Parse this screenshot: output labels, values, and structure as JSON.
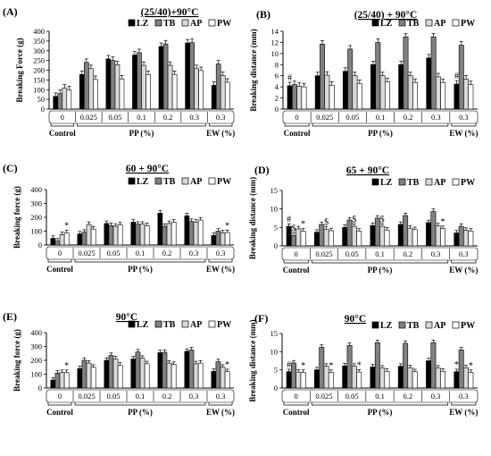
{
  "legend_entries": [
    "LZ",
    "TB",
    "AP",
    "PW"
  ],
  "series_colors": [
    "#000000",
    "#808080",
    "#d9d9d9",
    "#ffffff"
  ],
  "chart_data": [
    {
      "panel": "(A)",
      "type": "bar",
      "title": "(25/40)+90°C",
      "ylabel": "Breaking Force (g)",
      "ylim": [
        0,
        400
      ],
      "yticks": [
        0,
        50,
        100,
        150,
        200,
        250,
        300,
        350,
        400
      ],
      "categories": [
        "0",
        "0.025",
        "0.05",
        "0.1",
        "0.2",
        "0.3",
        "0.3"
      ],
      "group_labels": [
        "Control",
        "PP (%)",
        "EW (%)"
      ],
      "series": [
        {
          "name": "LZ",
          "values": [
            65,
            178,
            258,
            278,
            322,
            340,
            122
          ]
        },
        {
          "name": "TB",
          "values": [
            80,
            240,
            250,
            290,
            335,
            342,
            232
          ]
        },
        {
          "name": "AP",
          "values": [
            108,
            208,
            228,
            225,
            225,
            208,
            172
          ]
        },
        {
          "name": "PW",
          "values": [
            100,
            152,
            155,
            178,
            178,
            198,
            138
          ]
        }
      ],
      "annotations": []
    },
    {
      "panel": "(B)",
      "type": "bar",
      "title": "(25/40) + 90°C",
      "ylabel": "Breaking distance (mm)",
      "ylim": [
        0,
        14
      ],
      "yticks": [
        0,
        2,
        4,
        6,
        8,
        10,
        12,
        14
      ],
      "categories": [
        "0",
        "0.025",
        "0.05",
        "0.1",
        "0.2",
        "0.3",
        "0.3"
      ],
      "group_labels": [
        "Control",
        "PP (%)",
        "EW (%)"
      ],
      "series": [
        {
          "name": "LZ",
          "values": [
            4.2,
            6.0,
            6.8,
            8.0,
            8.0,
            9.2,
            4.5
          ]
        },
        {
          "name": "TB",
          "values": [
            4.4,
            11.7,
            10.8,
            12.0,
            13.0,
            13.0,
            11.5
          ]
        },
        {
          "name": "AP",
          "values": [
            4.1,
            6.1,
            6.0,
            6.0,
            6.0,
            5.8,
            5.4
          ]
        },
        {
          "name": "PW",
          "values": [
            4.0,
            4.3,
            4.6,
            4.9,
            4.8,
            4.8,
            4.4
          ]
        }
      ],
      "annotations": [
        {
          "text": "#",
          "group": 0,
          "bar": 0
        },
        {
          "text": "#",
          "group": 6,
          "bar": 0
        }
      ]
    },
    {
      "panel": "(C)",
      "type": "bar",
      "title": "60 + 90°C",
      "ylabel": "Breaking force (g)",
      "ylim": [
        0,
        400
      ],
      "yticks": [
        0,
        100,
        200,
        300,
        400
      ],
      "categories": [
        "0",
        "0.025",
        "0.05",
        "0.1",
        "0.2",
        "0.3",
        "0.3"
      ],
      "group_labels": [
        "Control",
        "PP (%)",
        "EW (%)"
      ],
      "series": [
        {
          "name": "LZ",
          "values": [
            48,
            80,
            155,
            165,
            230,
            210,
            68
          ]
        },
        {
          "name": "TB",
          "values": [
            28,
            92,
            140,
            150,
            135,
            170,
            100
          ]
        },
        {
          "name": "AP",
          "values": [
            75,
            148,
            135,
            150,
            155,
            165,
            88
          ]
        },
        {
          "name": "PW",
          "values": [
            88,
            115,
            145,
            140,
            165,
            180,
            90
          ]
        }
      ],
      "annotations": [
        {
          "text": "*",
          "group": 0,
          "bar": 3
        },
        {
          "text": "*",
          "group": 6,
          "bar": 3
        }
      ]
    },
    {
      "panel": "(D)",
      "type": "bar",
      "title": "65 + 90°C",
      "ylabel": "Breaking distance (mm)",
      "ylim": [
        0,
        15
      ],
      "yticks": [
        0,
        5,
        10,
        15
      ],
      "categories": [
        "0",
        "0.025",
        "0.05",
        "0.1",
        "0.2",
        "0.3",
        "0.3"
      ],
      "group_labels": [
        "Control",
        "PP (%)",
        "EW (%)"
      ],
      "series": [
        {
          "name": "LZ",
          "values": [
            5.3,
            3.7,
            5.0,
            5.5,
            5.8,
            6.3,
            3.5
          ]
        },
        {
          "name": "TB",
          "values": [
            2.8,
            5.8,
            7.0,
            7.5,
            8.2,
            9.3,
            5.3
          ]
        },
        {
          "name": "AP",
          "values": [
            4.6,
            4.5,
            5.3,
            5.3,
            4.8,
            5.4,
            4.2
          ]
        },
        {
          "name": "PW",
          "values": [
            4.0,
            4.1,
            4.0,
            4.3,
            4.4,
            4.7,
            4.0
          ]
        }
      ],
      "annotations": [
        {
          "text": "#",
          "group": 0,
          "bar": 0
        },
        {
          "text": "$",
          "group": 0,
          "bar": 1
        },
        {
          "text": "*",
          "group": 0,
          "bar": 3
        },
        {
          "text": "$",
          "group": 1,
          "bar": 2
        },
        {
          "text": "$",
          "group": 2,
          "bar": 2
        },
        {
          "text": "$",
          "group": 3,
          "bar": 2
        },
        {
          "text": "*",
          "group": 5,
          "bar": 3
        }
      ]
    },
    {
      "panel": "(E)",
      "type": "bar",
      "title": "90°C",
      "ylabel": "Breaking force (g)",
      "ylim": [
        0,
        400
      ],
      "yticks": [
        0,
        100,
        200,
        300,
        400
      ],
      "categories": [
        "0",
        "0.025",
        "0.05",
        "0.1",
        "0.2",
        "0.3",
        "0.3"
      ],
      "group_labels": [
        "Control",
        "PP (%)",
        "EW (%)"
      ],
      "series": [
        {
          "name": "LZ",
          "values": [
            58,
            140,
            200,
            210,
            255,
            265,
            120
          ]
        },
        {
          "name": "TB",
          "values": [
            108,
            200,
            235,
            260,
            258,
            275,
            190
          ]
        },
        {
          "name": "AP",
          "values": [
            112,
            180,
            210,
            215,
            180,
            175,
            150
          ]
        },
        {
          "name": "PW",
          "values": [
            112,
            150,
            165,
            175,
            170,
            180,
            118
          ]
        }
      ],
      "annotations": [
        {
          "text": "*",
          "group": 0,
          "bar": 3
        },
        {
          "text": "*",
          "group": 6,
          "bar": 3
        }
      ]
    },
    {
      "panel": "(F)",
      "type": "bar",
      "title": "90°C",
      "ylabel": "Breaking distance (mm)",
      "ylim": [
        0,
        15
      ],
      "yticks": [
        0,
        5,
        10,
        15
      ],
      "categories": [
        "0",
        "0.025",
        "0.05",
        "0.1",
        "0.2",
        "0.3",
        "0.3"
      ],
      "group_labels": [
        "Control",
        "PP (%)",
        "EW (%)"
      ],
      "series": [
        {
          "name": "LZ",
          "values": [
            4.5,
            5.0,
            6.1,
            5.8,
            6.0,
            7.5,
            4.5
          ]
        },
        {
          "name": "TB",
          "values": [
            6.9,
            11.2,
            11.7,
            12.5,
            12.3,
            12.5,
            10.5
          ]
        },
        {
          "name": "AP",
          "values": [
            4.4,
            6.0,
            6.0,
            5.5,
            5.6,
            5.5,
            5.6
          ]
        },
        {
          "name": "PW",
          "values": [
            4.3,
            4.3,
            4.4,
            4.6,
            4.5,
            4.6,
            4.3
          ]
        }
      ],
      "annotations": [
        {
          "text": "#",
          "group": 0,
          "bar": 0
        },
        {
          "text": "*",
          "group": 0,
          "bar": 3
        },
        {
          "text": "*",
          "group": 1,
          "bar": 3
        },
        {
          "text": "*",
          "group": 2,
          "bar": 3
        },
        {
          "text": "*",
          "group": 6,
          "bar": 0
        },
        {
          "text": "*",
          "group": 6,
          "bar": 3
        }
      ]
    }
  ]
}
